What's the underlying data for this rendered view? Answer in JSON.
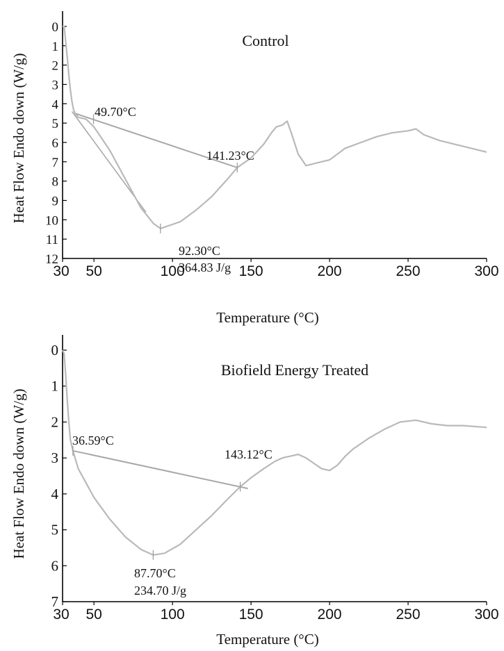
{
  "chart_data": [
    {
      "type": "line",
      "title": "Control",
      "xlabel": "Temperature (°C)",
      "ylabel": "Heat Flow Endo down (W/g)",
      "xlim": [
        30,
        300
      ],
      "ylim": [
        0,
        12
      ],
      "y_inverted": true,
      "x_ticks": [
        30,
        50,
        100,
        150,
        200,
        250,
        300
      ],
      "y_ticks": [
        0,
        1,
        2,
        3,
        4,
        5,
        6,
        7,
        8,
        9,
        10,
        11,
        12
      ],
      "grid": false,
      "colors": {
        "curve": "#b9b9b9",
        "baseline": "#a8a8a8",
        "axis": "#000000"
      },
      "curve": {
        "x": [
          30,
          31,
          32,
          33,
          34,
          35,
          36,
          37,
          38,
          40,
          45,
          50,
          60,
          70,
          80,
          88,
          92.3,
          96,
          105,
          115,
          125,
          135,
          141.23,
          150,
          158,
          163,
          166,
          170,
          173,
          176,
          180,
          185,
          190,
          195,
          200,
          205,
          210,
          220,
          230,
          240,
          250,
          255,
          260,
          270,
          280,
          290,
          300
        ],
        "y": [
          0,
          0,
          0.8,
          1.6,
          2.5,
          3.3,
          3.9,
          4.3,
          4.5,
          4.7,
          4.8,
          5.2,
          6.4,
          7.9,
          9.4,
          10.2,
          10.45,
          10.35,
          10.1,
          9.5,
          8.8,
          7.9,
          7.3,
          6.8,
          6.1,
          5.5,
          5.2,
          5.1,
          4.9,
          5.6,
          6.6,
          7.2,
          7.1,
          7.0,
          6.9,
          6.6,
          6.3,
          6.0,
          5.7,
          5.5,
          5.4,
          5.3,
          5.6,
          5.9,
          6.1,
          6.3,
          6.5
        ]
      },
      "baseline": {
        "x": [
          38,
          141.23
        ],
        "y": [
          4.5,
          7.3
        ]
      },
      "onset_line": {
        "x": [
          36,
          83
        ],
        "y": [
          4.4,
          9.6
        ]
      },
      "annotations": [
        {
          "label": "49.70°C",
          "x": 49.7,
          "y": 4.8
        },
        {
          "label": "141.23°C",
          "x": 141.23,
          "y": 7.3
        },
        {
          "label": "92.30°C",
          "x": 92.3,
          "y": 10.45
        },
        {
          "label": "364.83 J/g",
          "x": 92.3,
          "y": 10.45
        }
      ]
    },
    {
      "type": "line",
      "title": "Biofield Energy Treated",
      "xlabel": "Temperature (°C)",
      "ylabel": "Heat Flow Endo down (W/g)",
      "xlim": [
        30,
        300
      ],
      "ylim": [
        0,
        7
      ],
      "y_inverted": true,
      "x_ticks": [
        30,
        50,
        100,
        150,
        200,
        250,
        300
      ],
      "y_ticks": [
        0,
        1,
        2,
        3,
        4,
        5,
        6,
        7
      ],
      "grid": false,
      "colors": {
        "curve": "#b9b9b9",
        "baseline": "#a8a8a8",
        "axis": "#000000"
      },
      "curve": {
        "x": [
          30,
          31,
          32,
          33,
          34,
          35,
          36.59,
          40,
          45,
          50,
          60,
          70,
          80,
          87.7,
          95,
          105,
          115,
          125,
          135,
          143.12,
          150,
          158,
          165,
          170,
          175,
          180,
          185,
          190,
          195,
          200,
          205,
          210,
          215,
          225,
          235,
          245,
          255,
          265,
          275,
          285,
          300
        ],
        "y": [
          0,
          0.1,
          0.7,
          1.4,
          2.0,
          2.5,
          2.8,
          3.3,
          3.7,
          4.1,
          4.7,
          5.2,
          5.55,
          5.7,
          5.65,
          5.4,
          5.0,
          4.6,
          4.15,
          3.8,
          3.55,
          3.3,
          3.1,
          3.0,
          2.95,
          2.9,
          3.0,
          3.15,
          3.3,
          3.35,
          3.2,
          2.95,
          2.75,
          2.45,
          2.2,
          2.0,
          1.95,
          2.05,
          2.1,
          2.1,
          2.15
        ]
      },
      "baseline": {
        "x": [
          36.59,
          148
        ],
        "y": [
          2.8,
          3.85
        ]
      },
      "annotations": [
        {
          "label": "36.59°C",
          "x": 36.59,
          "y": 2.8
        },
        {
          "label": "143.12°C",
          "x": 143.12,
          "y": 3.8
        },
        {
          "label": "87.70°C",
          "x": 87.7,
          "y": 5.7
        },
        {
          "label": "234.70 J/g",
          "x": 87.7,
          "y": 5.7
        }
      ]
    }
  ]
}
